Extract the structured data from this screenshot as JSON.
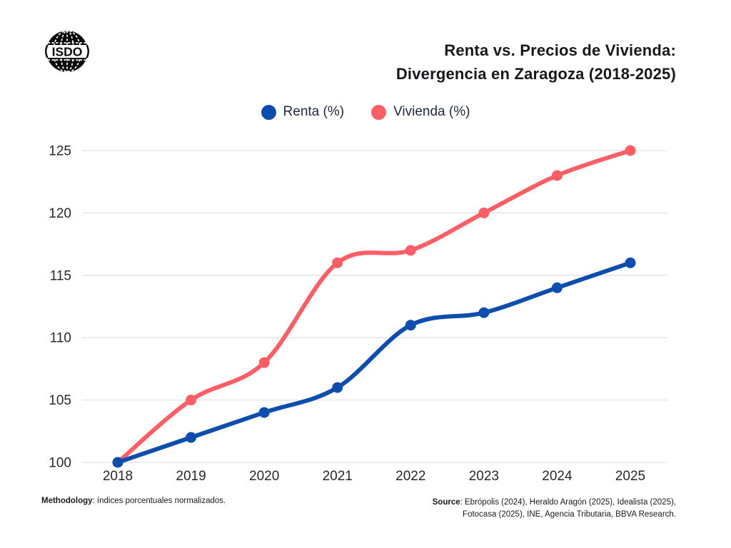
{
  "header": {
    "logo": {
      "text": "ISDO",
      "org_line1": "INTERNATIONAL SUSTAINABLE",
      "org_line2": "DEVELOPMENT OBSERVATORY"
    },
    "title_line1": "Renta vs. Precios de Vivienda:",
    "title_line2": "Divergencia en Zaragoza (2018-2025)"
  },
  "legend": [
    {
      "label": "Renta (%)",
      "color": "#0d4dae"
    },
    {
      "label": "Vivienda (%)",
      "color": "#fa5f66"
    }
  ],
  "chart_data": {
    "type": "line",
    "title": "Renta vs. Precios de Vivienda: Divergencia en Zaragoza (2018-2025)",
    "x": [
      2018,
      2019,
      2020,
      2021,
      2022,
      2023,
      2024,
      2025
    ],
    "series": [
      {
        "name": "Vivienda (%)",
        "color": "#fa5f66",
        "values": [
          100,
          105,
          108,
          116,
          117,
          120,
          123,
          125
        ]
      },
      {
        "name": "Renta (%)",
        "color": "#0d4dae",
        "values": [
          100,
          102,
          104,
          106,
          111,
          112,
          114,
          116
        ]
      }
    ],
    "xlabel": "",
    "ylabel": "",
    "ylim": [
      100,
      125
    ],
    "yticks": [
      100,
      105,
      110,
      115,
      120,
      125
    ],
    "grid": "horizontal",
    "gridline_color": "#e3e3e3",
    "tick_color": "#26282d",
    "legend_position": "top",
    "curve": "smooth",
    "markers": true
  },
  "footer": {
    "methodology_label": "Methodology",
    "methodology_text": ": índices porcentuales normalizados.",
    "source_label": "Source",
    "source_line1": ": Ebrópolis (2024), Heraldo Aragón (2025), Idealista (2025),",
    "source_line2": "Fotocasa (2025), INE, Agencia Tributaria, BBVA Research."
  }
}
